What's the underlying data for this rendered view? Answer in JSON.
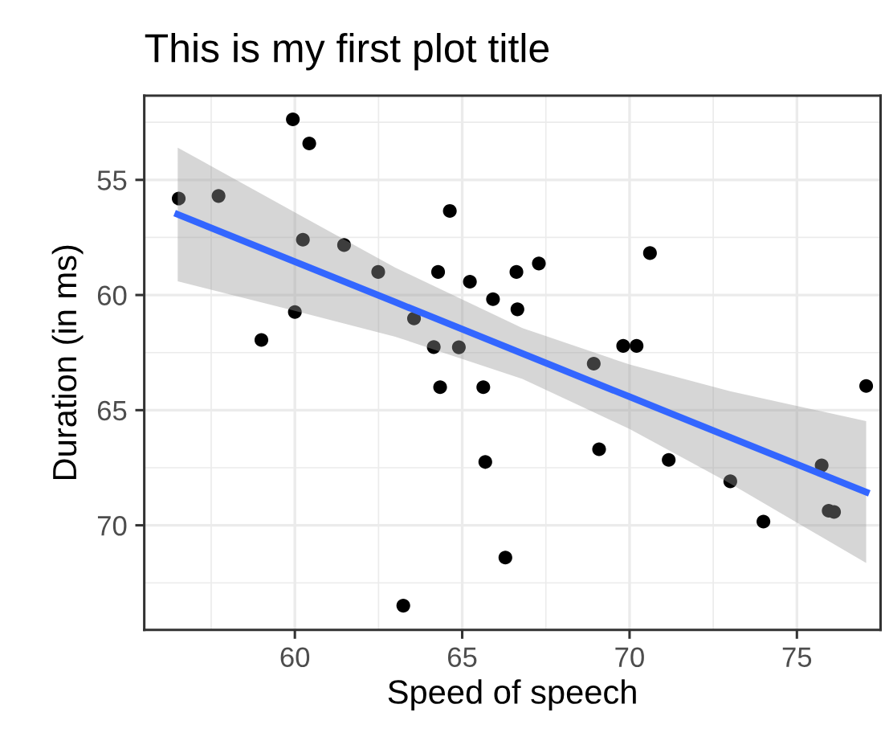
{
  "chart_data": {
    "type": "scatter",
    "title": "This is my first plot title",
    "xlabel": "Speed of speech",
    "ylabel": "Duration (in ms)",
    "xlim": [
      55.5,
      77.5
    ],
    "ylim": [
      74.54,
      51.34
    ],
    "xticks": [
      60,
      65,
      70,
      75
    ],
    "yticks": [
      55,
      60,
      65,
      70
    ],
    "grid": true,
    "series": [
      {
        "marker": "circle",
        "color": "#000000",
        "x": [
          56.53,
          57.72,
          59.94,
          60.43,
          60.24,
          61.47,
          62.49,
          64.28,
          60.0,
          59.0,
          63.56,
          64.15,
          64.34,
          64.63,
          64.9,
          65.23,
          65.63,
          65.92,
          65.69,
          66.62,
          66.65,
          67.29,
          68.93,
          69.81,
          70.21,
          70.61,
          77.07,
          69.09,
          71.17,
          73.01,
          74.0,
          75.74,
          75.95,
          76.11,
          66.29,
          63.24
        ],
        "values": [
          55.81,
          55.7,
          52.37,
          53.42,
          57.6,
          57.83,
          59.0,
          59.0,
          60.74,
          61.95,
          61.02,
          62.26,
          64.0,
          56.35,
          62.27,
          59.42,
          64.0,
          60.18,
          67.25,
          59.0,
          60.62,
          58.63,
          62.98,
          62.21,
          62.21,
          58.18,
          63.95,
          66.7,
          67.16,
          68.09,
          69.84,
          67.4,
          69.37,
          69.42,
          71.4,
          73.49
        ]
      },
      {
        "type": "line",
        "color": "#3366ff",
        "x": [
          56.5,
          60,
          63,
          66.8,
          70,
          73,
          77.07
        ],
        "values": [
          56.5,
          58.55,
          60.31,
          62.54,
          64.42,
          66.18,
          68.56
        ],
        "lower": [
          53.6,
          56.41,
          58.81,
          61.44,
          63.02,
          64.18,
          65.48
        ],
        "upper": [
          59.4,
          60.69,
          61.81,
          63.64,
          65.82,
          68.18,
          71.64
        ]
      }
    ]
  }
}
